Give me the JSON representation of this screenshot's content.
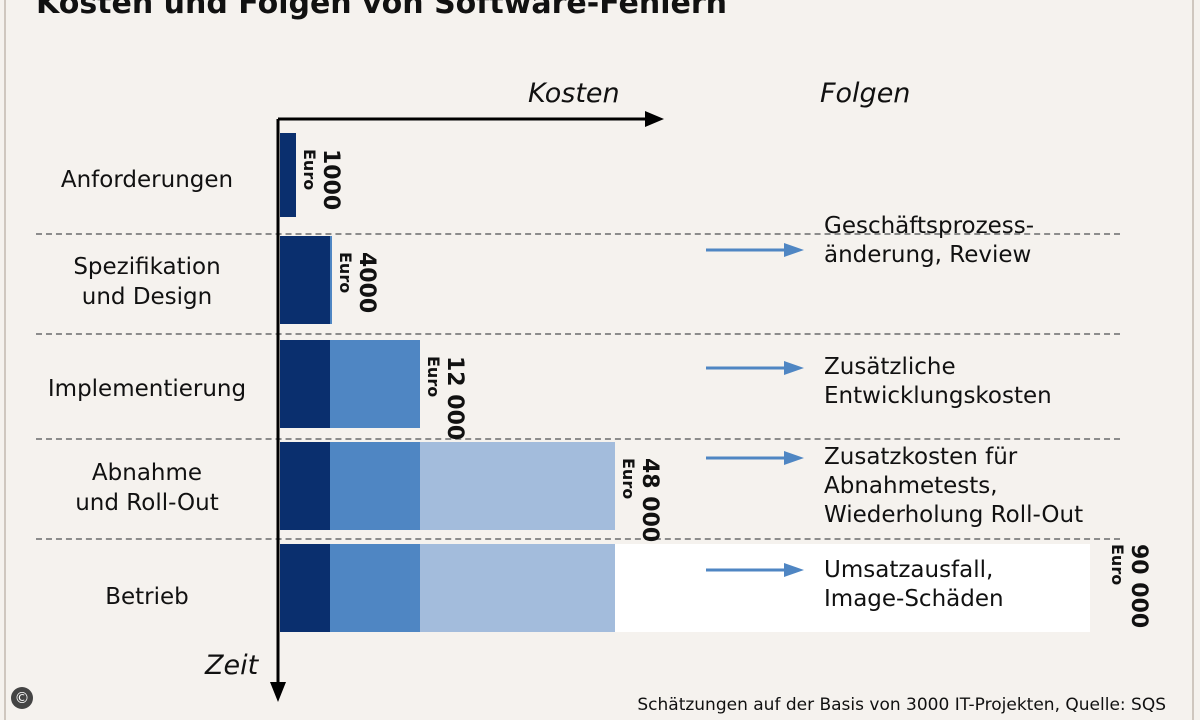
{
  "title": "Kosten und Folgen von Software-Fehlern",
  "header": {
    "kosten_label": "Kosten",
    "folgen_label": "Folgen"
  },
  "axis": {
    "zeit_label": "Zeit"
  },
  "source": "Schätzungen auf der Basis von 3000 IT-Projekten, Quelle: SQS",
  "copyright_symbol": "©",
  "colors": {
    "stage1": "#0a2f6e",
    "stage2": "#4f86c3",
    "stage3": "#a3bcdc",
    "stage4": "#ffffff",
    "arrow": "#4f86c3",
    "axis": "#000000"
  },
  "chart_data": {
    "type": "bar",
    "orientation": "horizontal",
    "title": "Kosten und Folgen von Software-Fehlern",
    "xlabel": "Kosten",
    "ylabel": "Zeit",
    "categories": [
      "Anforderungen",
      "Spezifikation\nund Design",
      "Implementierung",
      "Abnahme\nund Roll-Out",
      "Betrieb"
    ],
    "values": [
      1000,
      4000,
      12000,
      48000,
      90000
    ],
    "value_labels": [
      "1000",
      "4000",
      "12 000",
      "48 000",
      "90 000"
    ],
    "unit": "Euro",
    "consequences": [
      "",
      "Geschäftsprozess-\nänderung, Review",
      "Zusätzliche\nEntwicklungskosten",
      "Zusatzkosten für\nAbnahmetests,\nWiederholung Roll-Out",
      "Umsatzausfall,\nImage-Schäden"
    ],
    "stacked_from_previous_stages": true,
    "grid": false,
    "legend": "none"
  }
}
